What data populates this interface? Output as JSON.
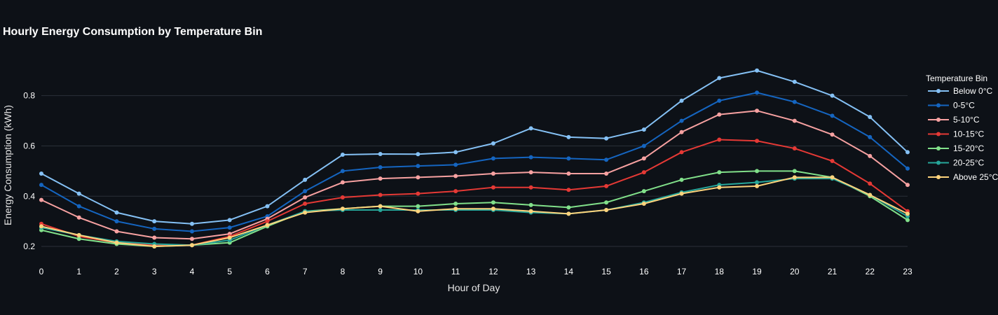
{
  "chart_data": {
    "type": "line",
    "title": "Hourly Energy Consumption by Temperature Bin",
    "xlabel": "Hour of Day",
    "ylabel": "Energy Consumption (kWh)",
    "x": [
      0,
      1,
      2,
      3,
      4,
      5,
      6,
      7,
      8,
      9,
      10,
      11,
      12,
      13,
      14,
      15,
      16,
      17,
      18,
      19,
      20,
      21,
      22,
      23
    ],
    "xlim": [
      0,
      23
    ],
    "ylim": [
      0.15,
      0.93
    ],
    "yticks": [
      0.2,
      0.4,
      0.6,
      0.8
    ],
    "grid": true,
    "legend_title": "Temperature Bin",
    "legend_position": "right",
    "series": [
      {
        "name": "Below 0°C",
        "color": "#85c1f5",
        "values": [
          0.49,
          0.41,
          0.335,
          0.3,
          0.29,
          0.305,
          0.36,
          0.465,
          0.565,
          0.568,
          0.567,
          0.575,
          0.61,
          0.67,
          0.635,
          0.63,
          0.665,
          0.78,
          0.87,
          0.9,
          0.855,
          0.8,
          0.715,
          0.575
        ]
      },
      {
        "name": "0-5°C",
        "color": "#1565c0",
        "values": [
          0.445,
          0.36,
          0.3,
          0.27,
          0.26,
          0.275,
          0.32,
          0.42,
          0.5,
          0.515,
          0.52,
          0.525,
          0.55,
          0.555,
          0.55,
          0.545,
          0.6,
          0.7,
          0.78,
          0.812,
          0.775,
          0.72,
          0.635,
          0.51
        ]
      },
      {
        "name": "5-10°C",
        "color": "#f7a1a1",
        "values": [
          0.385,
          0.315,
          0.26,
          0.235,
          0.23,
          0.25,
          0.31,
          0.395,
          0.455,
          0.47,
          0.475,
          0.48,
          0.49,
          0.495,
          0.49,
          0.49,
          0.55,
          0.655,
          0.725,
          0.74,
          0.7,
          0.645,
          0.56,
          0.445
        ]
      },
      {
        "name": "10-15°C",
        "color": "#e53935",
        "values": [
          0.29,
          0.24,
          0.215,
          0.205,
          0.205,
          0.24,
          0.3,
          0.37,
          0.395,
          0.405,
          0.41,
          0.42,
          0.435,
          0.435,
          0.425,
          0.44,
          0.495,
          0.575,
          0.625,
          0.62,
          0.59,
          0.54,
          0.45,
          0.34
        ]
      },
      {
        "name": "15-20°C",
        "color": "#81e08a",
        "values": [
          0.265,
          0.23,
          0.21,
          0.2,
          0.205,
          0.215,
          0.28,
          0.34,
          0.35,
          0.36,
          0.36,
          0.37,
          0.375,
          0.365,
          0.355,
          0.375,
          0.42,
          0.465,
          0.495,
          0.5,
          0.5,
          0.475,
          0.4,
          0.305
        ]
      },
      {
        "name": "20-25°C",
        "color": "#26a69a",
        "values": [
          0.275,
          0.245,
          0.22,
          0.21,
          0.205,
          0.225,
          0.285,
          0.34,
          0.345,
          0.345,
          0.345,
          0.345,
          0.345,
          0.335,
          0.33,
          0.345,
          0.375,
          0.415,
          0.445,
          0.455,
          0.47,
          0.47,
          0.405,
          0.32
        ]
      },
      {
        "name": "Above 25°C",
        "color": "#fdd37c",
        "values": [
          0.28,
          0.245,
          0.215,
          0.2,
          0.205,
          0.235,
          0.285,
          0.335,
          0.35,
          0.36,
          0.34,
          0.35,
          0.35,
          0.34,
          0.33,
          0.345,
          0.37,
          0.41,
          0.435,
          0.44,
          0.475,
          0.475,
          0.405,
          0.33
        ]
      }
    ]
  }
}
